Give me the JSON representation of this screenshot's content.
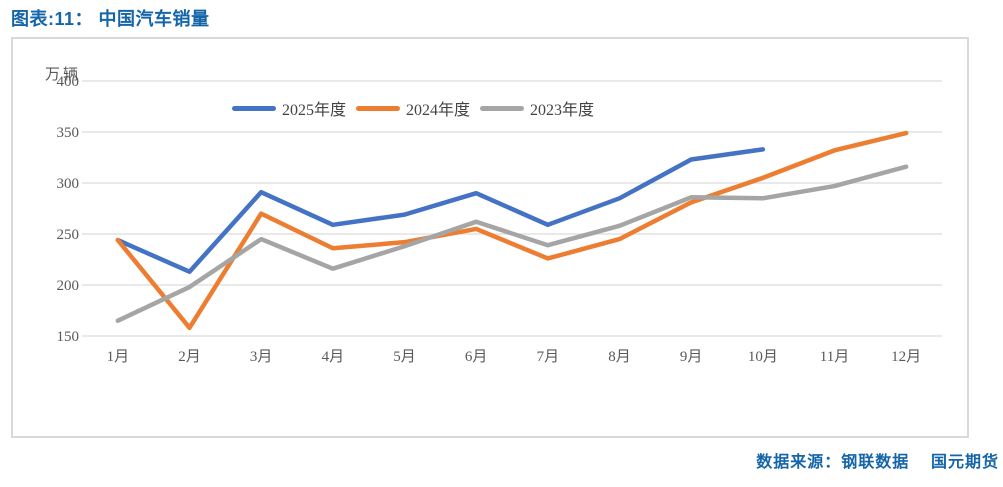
{
  "title": {
    "text": "图表:11： 中国汽车销量",
    "color": "#1565A9"
  },
  "source_note": {
    "text": "数据来源：钢联数据    国元期货",
    "color": "#1565A9"
  },
  "chart_data": {
    "type": "line",
    "title": "图表:11： 中国汽车销量",
    "unit_label": "万辆",
    "categories": [
      "1月",
      "2月",
      "3月",
      "4月",
      "5月",
      "6月",
      "7月",
      "8月",
      "9月",
      "10月",
      "11月",
      "12月"
    ],
    "series": [
      {
        "name": "2025年度",
        "color": "#4472C4",
        "values": [
          244,
          213,
          291,
          259,
          269,
          290,
          259,
          285,
          323,
          333
        ]
      },
      {
        "name": "2024年度",
        "color": "#ED7D31",
        "values": [
          244,
          158,
          270,
          236,
          242,
          255,
          226,
          245,
          281,
          305,
          332,
          349
        ]
      },
      {
        "name": "2023年度",
        "color": "#A5A5A5",
        "values": [
          165,
          198,
          245,
          216,
          238,
          262,
          239,
          258,
          286,
          285,
          297,
          316
        ]
      }
    ],
    "xlabel": "",
    "ylabel": "万辆",
    "ylim": [
      150,
      400
    ],
    "y_ticks": [
      400,
      350,
      300,
      250,
      200,
      150
    ],
    "grid": "horizontal",
    "grid_color": "#E2E2E2",
    "axis_label_color": "#595959",
    "legend_position": "top-center",
    "line_width": 4.5
  }
}
